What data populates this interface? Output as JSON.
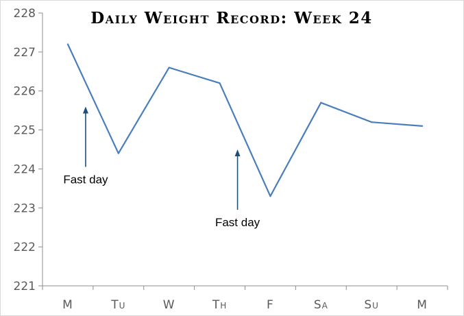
{
  "chart_data": {
    "type": "line",
    "title": "Daily Weight Record: Week 24",
    "xlabel": "",
    "ylabel": "",
    "categories": [
      "M",
      "Tu",
      "W",
      "Th",
      "F",
      "Sa",
      "Su",
      "M"
    ],
    "series": [
      {
        "values": [
          227.2,
          224.4,
          226.6,
          226.2,
          223.3,
          225.7,
          225.2,
          225.1
        ],
        "color": "#4a7ebb"
      }
    ],
    "ylim": [
      221,
      228
    ],
    "yticks": [
      221,
      222,
      223,
      224,
      225,
      226,
      227,
      228
    ],
    "grid": false,
    "legend": "none",
    "annotations": [
      {
        "text": "Fast day",
        "category_index": 0,
        "value": 225.6
      },
      {
        "text": "Fast day",
        "category_index": 3,
        "value": 224.5
      }
    ]
  }
}
